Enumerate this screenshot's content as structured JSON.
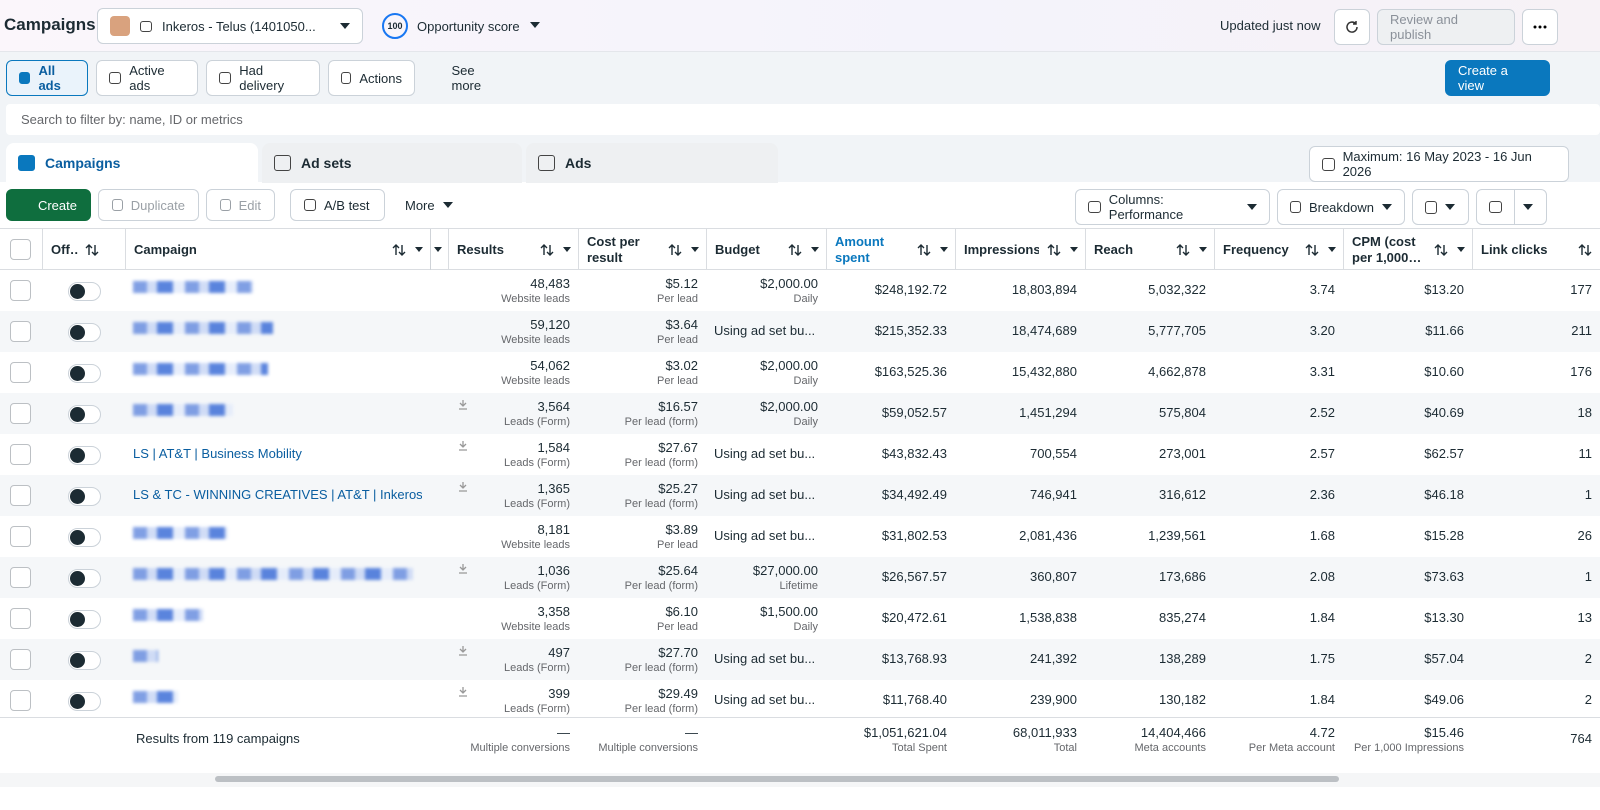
{
  "header": {
    "title": "Campaigns",
    "account": "Inkeros - Telus (1401050...",
    "score": "100",
    "score_label": "Opportunity score",
    "updated": "Updated just now",
    "publish": "Review and publish"
  },
  "filters": {
    "items": [
      "All ads",
      "Active ads",
      "Had delivery",
      "Actions",
      "See more"
    ],
    "create_view": "Create a view",
    "search": "Search to filter by: name, ID or metrics"
  },
  "tabs": {
    "items": [
      "Campaigns",
      "Ad sets",
      "Ads"
    ],
    "date": "Maximum: 16 May 2023 - 16 Jun 2026"
  },
  "toolbar": {
    "items": [
      "Create",
      "Duplicate",
      "Edit",
      "A/B test",
      "More"
    ],
    "columns": "Columns: Performance",
    "breakdown": "Breakdown"
  },
  "table": {
    "columns": [
      "Off…",
      "Campaign",
      "Results",
      "Cost per result",
      "Budget",
      "Amount spent",
      "Impressions",
      "Reach",
      "Frequency",
      "CPM (cost per 1,000…",
      "Link clicks"
    ],
    "rows": [
      {
        "results": "48,483",
        "result_type": "Website leads",
        "cost": "$5.12",
        "cost_type": "Per lead",
        "budget": "$2,000.00",
        "budget_type": "Daily",
        "spent": "$248,192.72",
        "impressions": "18,803,894",
        "reach": "5,032,322",
        "frequency": "3.74",
        "cpm": "$13.20",
        "link_clicks": "177"
      },
      {
        "results": "59,120",
        "result_type": "Website leads",
        "cost": "$3.64",
        "cost_type": "Per lead",
        "budget": "Using ad set bu...",
        "spent": "$215,352.33",
        "impressions": "18,474,689",
        "reach": "5,777,705",
        "frequency": "3.20",
        "cpm": "$11.66",
        "link_clicks": "211"
      },
      {
        "results": "54,062",
        "result_type": "Website leads",
        "cost": "$3.02",
        "cost_type": "Per lead",
        "budget": "$2,000.00",
        "budget_type": "Daily",
        "spent": "$163,525.36",
        "impressions": "15,432,880",
        "reach": "4,662,878",
        "frequency": "3.31",
        "cpm": "$10.60",
        "link_clicks": "176"
      },
      {
        "results": "3,564",
        "result_type": "Leads (Form)",
        "cost": "$16.57",
        "cost_type": "Per lead (form)",
        "budget": "$2,000.00",
        "budget_type": "Daily",
        "spent": "$59,052.57",
        "impressions": "1,451,294",
        "reach": "575,804",
        "frequency": "2.52",
        "cpm": "$40.69",
        "link_clicks": "18"
      },
      {
        "campaign": "LS | AT&T | Business Mobility",
        "results": "1,584",
        "result_type": "Leads (Form)",
        "cost": "$27.67",
        "cost_type": "Per lead (form)",
        "budget": "Using ad set bu...",
        "spent": "$43,832.43",
        "impressions": "700,554",
        "reach": "273,001",
        "frequency": "2.57",
        "cpm": "$62.57",
        "link_clicks": "11"
      },
      {
        "campaign": "LS & TC - WINNING CREATIVES | AT&T | Inkeros ...",
        "results": "1,365",
        "result_type": "Leads (Form)",
        "cost": "$25.27",
        "cost_type": "Per lead (form)",
        "budget": "Using ad set bu...",
        "spent": "$34,492.49",
        "impressions": "746,941",
        "reach": "316,612",
        "frequency": "2.36",
        "cpm": "$46.18",
        "link_clicks": "1"
      },
      {
        "results": "8,181",
        "result_type": "Website leads",
        "cost": "$3.89",
        "cost_type": "Per lead",
        "budget": "Using ad set bu...",
        "spent": "$31,802.53",
        "impressions": "2,081,436",
        "reach": "1,239,561",
        "frequency": "1.68",
        "cpm": "$15.28",
        "link_clicks": "26"
      },
      {
        "results": "1,036",
        "result_type": "Leads (Form)",
        "cost": "$25.64",
        "cost_type": "Per lead (form)",
        "budget": "$27,000.00",
        "budget_type": "Lifetime",
        "spent": "$26,567.57",
        "impressions": "360,807",
        "reach": "173,686",
        "frequency": "2.08",
        "cpm": "$73.63",
        "link_clicks": "1"
      },
      {
        "results": "3,358",
        "result_type": "Website leads",
        "cost": "$6.10",
        "cost_type": "Per lead",
        "budget": "$1,500.00",
        "budget_type": "Daily",
        "spent": "$20,472.61",
        "impressions": "1,538,838",
        "reach": "835,274",
        "frequency": "1.84",
        "cpm": "$13.30",
        "link_clicks": "13"
      },
      {
        "results": "497",
        "result_type": "Leads (Form)",
        "cost": "$27.70",
        "cost_type": "Per lead (form)",
        "budget": "Using ad set bu...",
        "spent": "$13,768.93",
        "impressions": "241,392",
        "reach": "138,289",
        "frequency": "1.75",
        "cpm": "$57.04",
        "link_clicks": "2"
      },
      {
        "results": "399",
        "result_type": "Leads (Form)",
        "cost": "$29.49",
        "cost_type": "Per lead (form)",
        "budget": "Using ad set bu...",
        "spent": "$11,768.40",
        "impressions": "239,900",
        "reach": "130,182",
        "frequency": "1.84",
        "cpm": "$49.06",
        "link_clicks": "2"
      }
    ],
    "footer": {
      "campaign": "Results from 119 campaigns",
      "results": "—",
      "result_type": "Multiple conversions",
      "cost": "—",
      "cost_type": "Multiple conversions",
      "spent": "$1,051,621.04",
      "spent_type": "Total Spent",
      "impressions": "68,011,933",
      "impressions_type": "Total",
      "reach": "14,404,466",
      "reach_type": "Meta accounts",
      "frequency": "4.72",
      "frequency_type": "Per Meta account",
      "cpm": "$15.46",
      "cpm_type": "Per 1,000 Impressions",
      "link_clicks": "764"
    }
  }
}
